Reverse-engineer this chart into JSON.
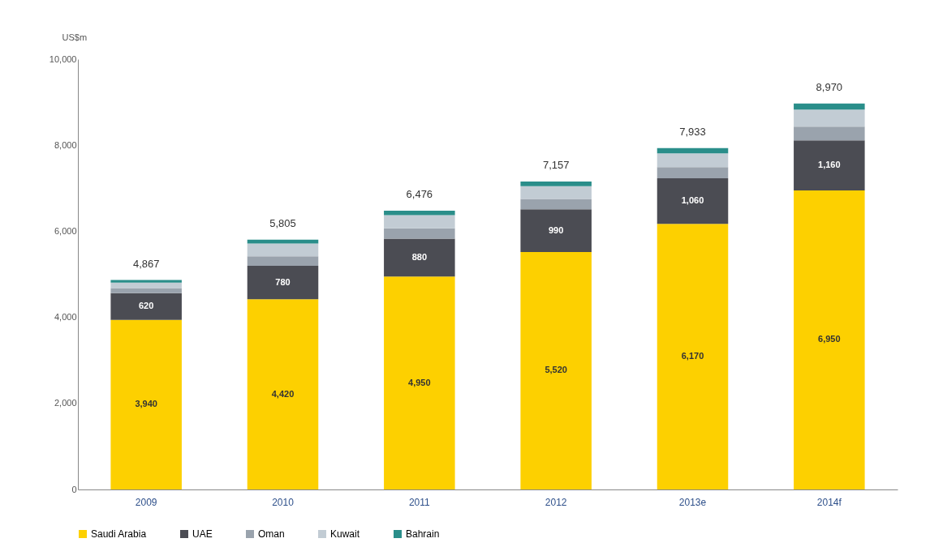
{
  "chart_data": {
    "type": "bar",
    "stacked": true,
    "ylabel": "US$m",
    "categories": [
      "2009",
      "2010",
      "2011",
      "2012",
      "2013e",
      "2014f"
    ],
    "series": [
      {
        "name": "Saudi Arabia",
        "color": "#fdd000",
        "values": [
          3940,
          4420,
          4950,
          5520,
          6170,
          6950
        ],
        "value_labels": [
          "3,940",
          "4,420",
          "4,950",
          "5,520",
          "6,170",
          "6,950"
        ]
      },
      {
        "name": "UAE",
        "color": "#4b4c53",
        "values": [
          620,
          780,
          880,
          990,
          1060,
          1160
        ],
        "value_labels": [
          "620",
          "780",
          "880",
          "990",
          "1,060",
          "1,160"
        ]
      },
      {
        "name": "Oman",
        "color": "#9aa3ad",
        "values": [
          120,
          220,
          240,
          240,
          260,
          320
        ]
      },
      {
        "name": "Kuwait",
        "color": "#c2ccd4",
        "values": [
          127,
          295,
          306,
          297,
          323,
          400
        ]
      },
      {
        "name": "Bahrain",
        "color": "#2a8e8a",
        "values": [
          60,
          90,
          100,
          110,
          120,
          140
        ]
      }
    ],
    "totals": [
      "4,867",
      "5,805",
      "6,476",
      "7,157",
      "7,933",
      "8,970"
    ],
    "ylim": [
      0,
      10000
    ],
    "yticks": [
      0,
      {
        "value": 2000,
        "label": "2,000"
      },
      {
        "value": 4000,
        "label": "4,000"
      },
      {
        "value": 6000,
        "label": "6,000"
      },
      {
        "value": 8000,
        "label": "8,000"
      },
      {
        "value": 10000,
        "label": "10,000"
      }
    ],
    "grid": false,
    "legend": "bottom"
  }
}
